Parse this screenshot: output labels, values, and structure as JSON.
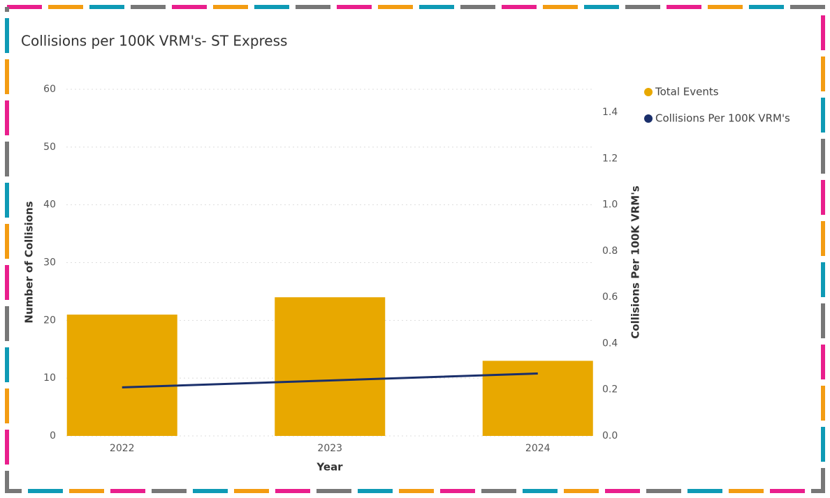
{
  "chart_data": {
    "type": "bar",
    "title": "Collisions per 100K VRM's- ST Express",
    "categories": [
      "2022",
      "2023",
      "2024"
    ],
    "x_label": "Year",
    "y_label": "Number of Collisions",
    "y2_label": "Collisions Per 100K VRM's",
    "series": [
      {
        "name": "Total Events",
        "type": "bar",
        "color": "#e8a800",
        "values": [
          21,
          24,
          13
        ]
      },
      {
        "name": "Collisions Per 100K VRM's",
        "type": "line",
        "axis": "y2",
        "color": "#1a2f6b",
        "values": [
          0.21,
          0.24,
          0.27
        ]
      }
    ],
    "ylim": [
      0,
      60
    ],
    "yticks": [
      0,
      10,
      20,
      30,
      40,
      50,
      60
    ],
    "y2lim": [
      0,
      1.5
    ],
    "y2ticks": [
      {
        "value": 0,
        "label": "0.0"
      },
      0.2,
      0.4,
      0.6,
      0.8,
      {
        "value": 1,
        "label": "1.0"
      },
      1.2,
      1.4
    ],
    "grid": true,
    "legend": "right"
  }
}
